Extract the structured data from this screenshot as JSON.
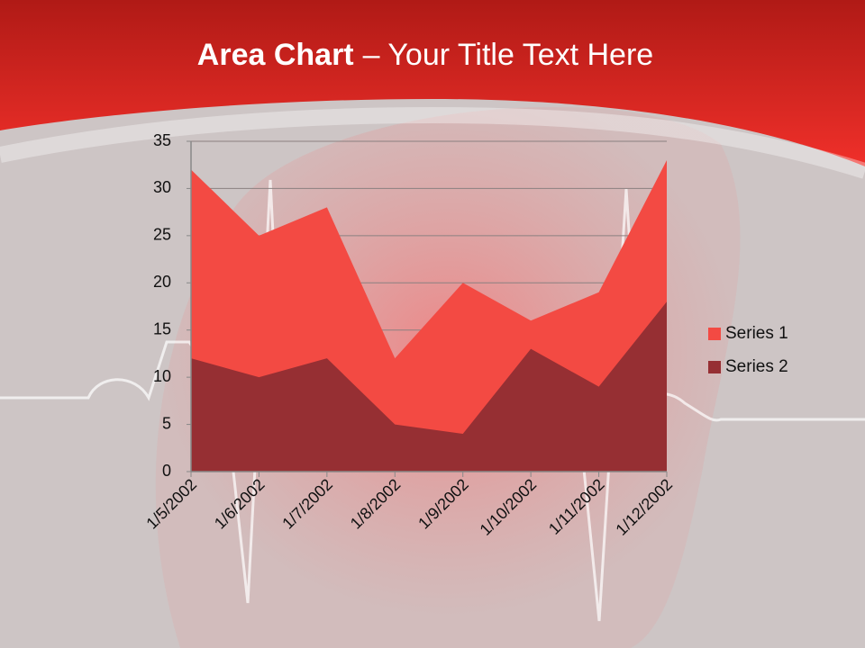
{
  "chart_data": {
    "type": "area",
    "title": {
      "bold": "Area Chart",
      "rest": "– Your Title Text Here"
    },
    "categories": [
      "1/5/2002",
      "1/6/2002",
      "1/7/2002",
      "1/8/2002",
      "1/9/2002",
      "1/10/2002",
      "1/11/2002",
      "1/12/2002"
    ],
    "series": [
      {
        "name": "Series 1",
        "color": "#f34a43",
        "values": [
          32,
          25,
          28,
          12,
          20,
          16,
          19,
          33
        ]
      },
      {
        "name": "Series 2",
        "color": "#962f33",
        "values": [
          12,
          10,
          12,
          5,
          4,
          13,
          9,
          18
        ]
      }
    ],
    "ylim": [
      0,
      35
    ],
    "yticks": [
      0,
      5,
      10,
      15,
      20,
      25,
      30,
      35
    ],
    "grid": true,
    "legend": "right"
  }
}
